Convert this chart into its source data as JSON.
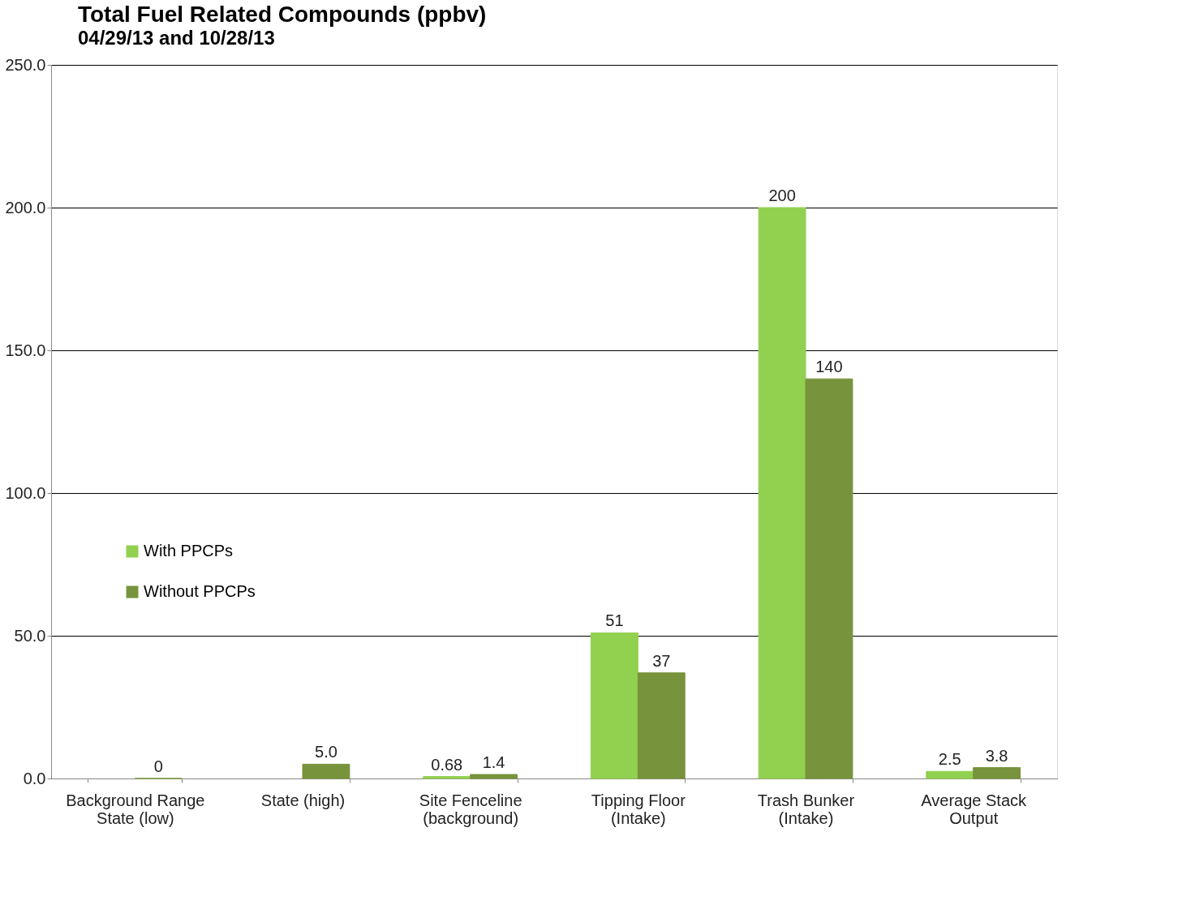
{
  "chart_data": {
    "type": "bar",
    "title": "Total Fuel Related Compounds (ppbv)",
    "subtitle": "04/29/13 and 10/28/13",
    "categories": [
      "Background Range\nState (low)",
      "State (high)",
      "Site Fenceline\n(background)",
      "Tipping Floor\n(Intake)",
      "Trash Bunker\n(Intake)",
      "Average Stack\nOutput"
    ],
    "series": [
      {
        "name": "With PPCPs",
        "color": "#92d050",
        "values": [
          null,
          null,
          0.68,
          51,
          200,
          2.5
        ],
        "value_labels": [
          null,
          null,
          "0.68",
          "51",
          "200",
          "2.5"
        ]
      },
      {
        "name": "Without PPCPs",
        "color": "#77933c",
        "values": [
          0,
          5.0,
          1.4,
          37,
          140,
          3.8
        ],
        "value_labels": [
          "0",
          "5.0",
          "1.4",
          "37",
          "140",
          "3.8"
        ]
      }
    ],
    "ylim": [
      0,
      250
    ],
    "yticks": [
      {
        "value": 0,
        "label": "0.0"
      },
      {
        "value": 50,
        "label": "50.0"
      },
      {
        "value": 100,
        "label": "100.0"
      },
      {
        "value": 150,
        "label": "150.0"
      },
      {
        "value": 200,
        "label": "200.0"
      },
      {
        "value": 250,
        "label": "250.0"
      }
    ],
    "grid": "y",
    "legend": "left"
  }
}
